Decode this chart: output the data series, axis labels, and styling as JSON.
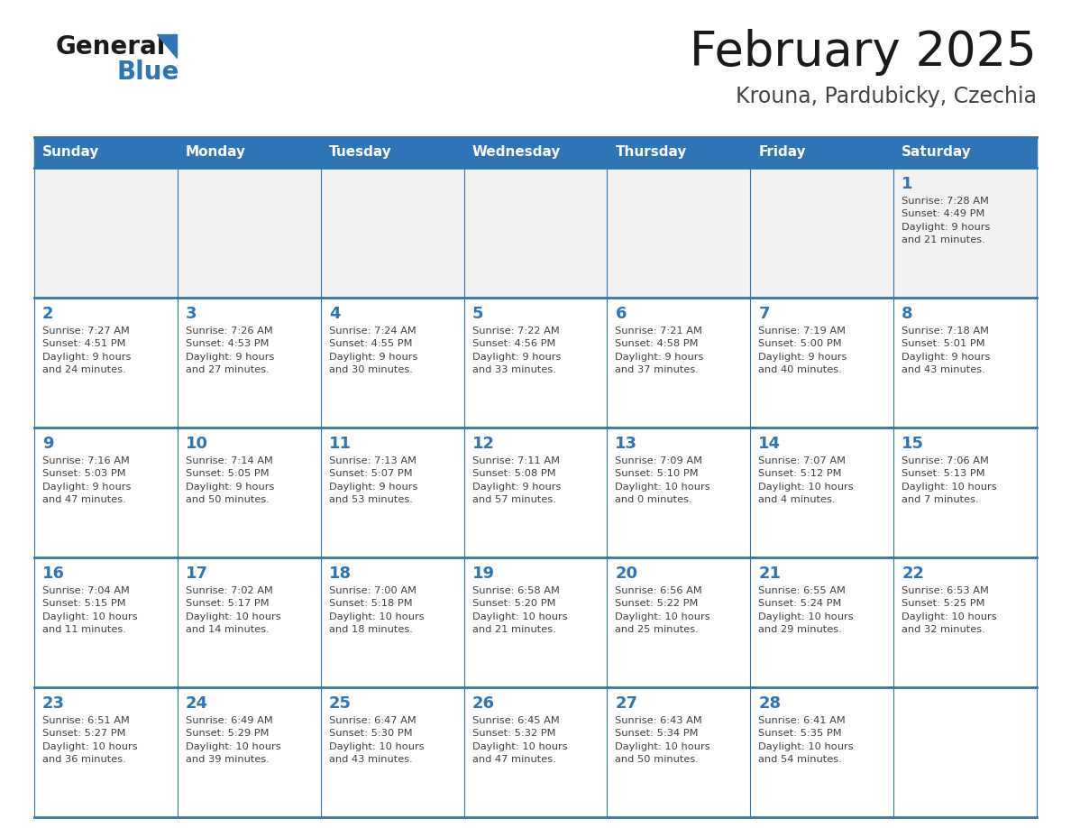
{
  "title": "February 2025",
  "subtitle": "Krouna, Pardubicky, Czechia",
  "days_of_week": [
    "Sunday",
    "Monday",
    "Tuesday",
    "Wednesday",
    "Thursday",
    "Friday",
    "Saturday"
  ],
  "header_bg": "#2E75B6",
  "header_text_color": "#FFFFFF",
  "separator_color": "#2E75B6",
  "day_num_color": "#2E75B6",
  "info_text_color": "#404040",
  "cell_bg_white": "#FFFFFF",
  "cell_bg_gray": "#F2F2F2",
  "title_color": "#1a1a1a",
  "subtitle_color": "#444444",
  "logo_general_color": "#1a1a1a",
  "logo_blue_color": "#2E75B6",
  "logo_triangle_color": "#2E75B6",
  "weeks": [
    [
      null,
      null,
      null,
      null,
      null,
      null,
      {
        "day": "1",
        "rise": "Sunrise: 7:28 AM",
        "set": "Sunset: 4:49 PM",
        "day_len": "Daylight: 9 hours\nand 21 minutes."
      }
    ],
    [
      {
        "day": "2",
        "rise": "Sunrise: 7:27 AM",
        "set": "Sunset: 4:51 PM",
        "day_len": "Daylight: 9 hours\nand 24 minutes."
      },
      {
        "day": "3",
        "rise": "Sunrise: 7:26 AM",
        "set": "Sunset: 4:53 PM",
        "day_len": "Daylight: 9 hours\nand 27 minutes."
      },
      {
        "day": "4",
        "rise": "Sunrise: 7:24 AM",
        "set": "Sunset: 4:55 PM",
        "day_len": "Daylight: 9 hours\nand 30 minutes."
      },
      {
        "day": "5",
        "rise": "Sunrise: 7:22 AM",
        "set": "Sunset: 4:56 PM",
        "day_len": "Daylight: 9 hours\nand 33 minutes."
      },
      {
        "day": "6",
        "rise": "Sunrise: 7:21 AM",
        "set": "Sunset: 4:58 PM",
        "day_len": "Daylight: 9 hours\nand 37 minutes."
      },
      {
        "day": "7",
        "rise": "Sunrise: 7:19 AM",
        "set": "Sunset: 5:00 PM",
        "day_len": "Daylight: 9 hours\nand 40 minutes."
      },
      {
        "day": "8",
        "rise": "Sunrise: 7:18 AM",
        "set": "Sunset: 5:01 PM",
        "day_len": "Daylight: 9 hours\nand 43 minutes."
      }
    ],
    [
      {
        "day": "9",
        "rise": "Sunrise: 7:16 AM",
        "set": "Sunset: 5:03 PM",
        "day_len": "Daylight: 9 hours\nand 47 minutes."
      },
      {
        "day": "10",
        "rise": "Sunrise: 7:14 AM",
        "set": "Sunset: 5:05 PM",
        "day_len": "Daylight: 9 hours\nand 50 minutes."
      },
      {
        "day": "11",
        "rise": "Sunrise: 7:13 AM",
        "set": "Sunset: 5:07 PM",
        "day_len": "Daylight: 9 hours\nand 53 minutes."
      },
      {
        "day": "12",
        "rise": "Sunrise: 7:11 AM",
        "set": "Sunset: 5:08 PM",
        "day_len": "Daylight: 9 hours\nand 57 minutes."
      },
      {
        "day": "13",
        "rise": "Sunrise: 7:09 AM",
        "set": "Sunset: 5:10 PM",
        "day_len": "Daylight: 10 hours\nand 0 minutes."
      },
      {
        "day": "14",
        "rise": "Sunrise: 7:07 AM",
        "set": "Sunset: 5:12 PM",
        "day_len": "Daylight: 10 hours\nand 4 minutes."
      },
      {
        "day": "15",
        "rise": "Sunrise: 7:06 AM",
        "set": "Sunset: 5:13 PM",
        "day_len": "Daylight: 10 hours\nand 7 minutes."
      }
    ],
    [
      {
        "day": "16",
        "rise": "Sunrise: 7:04 AM",
        "set": "Sunset: 5:15 PM",
        "day_len": "Daylight: 10 hours\nand 11 minutes."
      },
      {
        "day": "17",
        "rise": "Sunrise: 7:02 AM",
        "set": "Sunset: 5:17 PM",
        "day_len": "Daylight: 10 hours\nand 14 minutes."
      },
      {
        "day": "18",
        "rise": "Sunrise: 7:00 AM",
        "set": "Sunset: 5:18 PM",
        "day_len": "Daylight: 10 hours\nand 18 minutes."
      },
      {
        "day": "19",
        "rise": "Sunrise: 6:58 AM",
        "set": "Sunset: 5:20 PM",
        "day_len": "Daylight: 10 hours\nand 21 minutes."
      },
      {
        "day": "20",
        "rise": "Sunrise: 6:56 AM",
        "set": "Sunset: 5:22 PM",
        "day_len": "Daylight: 10 hours\nand 25 minutes."
      },
      {
        "day": "21",
        "rise": "Sunrise: 6:55 AM",
        "set": "Sunset: 5:24 PM",
        "day_len": "Daylight: 10 hours\nand 29 minutes."
      },
      {
        "day": "22",
        "rise": "Sunrise: 6:53 AM",
        "set": "Sunset: 5:25 PM",
        "day_len": "Daylight: 10 hours\nand 32 minutes."
      }
    ],
    [
      {
        "day": "23",
        "rise": "Sunrise: 6:51 AM",
        "set": "Sunset: 5:27 PM",
        "day_len": "Daylight: 10 hours\nand 36 minutes."
      },
      {
        "day": "24",
        "rise": "Sunrise: 6:49 AM",
        "set": "Sunset: 5:29 PM",
        "day_len": "Daylight: 10 hours\nand 39 minutes."
      },
      {
        "day": "25",
        "rise": "Sunrise: 6:47 AM",
        "set": "Sunset: 5:30 PM",
        "day_len": "Daylight: 10 hours\nand 43 minutes."
      },
      {
        "day": "26",
        "rise": "Sunrise: 6:45 AM",
        "set": "Sunset: 5:32 PM",
        "day_len": "Daylight: 10 hours\nand 47 minutes."
      },
      {
        "day": "27",
        "rise": "Sunrise: 6:43 AM",
        "set": "Sunset: 5:34 PM",
        "day_len": "Daylight: 10 hours\nand 50 minutes."
      },
      {
        "day": "28",
        "rise": "Sunrise: 6:41 AM",
        "set": "Sunset: 5:35 PM",
        "day_len": "Daylight: 10 hours\nand 54 minutes."
      },
      null
    ]
  ]
}
